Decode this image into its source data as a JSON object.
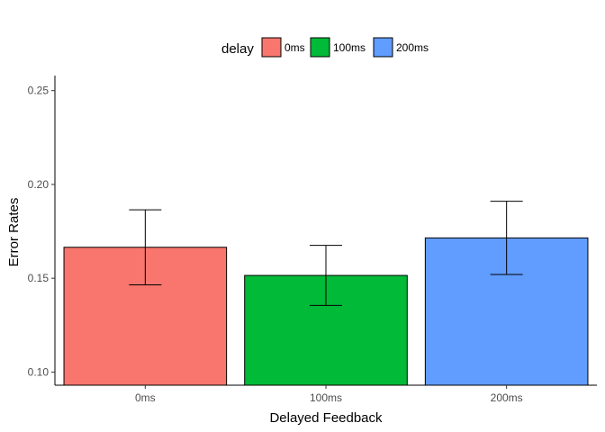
{
  "chart_data": {
    "type": "bar",
    "title": "",
    "xlabel": "Delayed Feedback",
    "ylabel": "Error Rates",
    "categories": [
      "0ms",
      "100ms",
      "200ms"
    ],
    "values": [
      0.1665,
      0.1515,
      0.1715
    ],
    "error_bars": [
      {
        "low": 0.1465,
        "high": 0.1865
      },
      {
        "low": 0.1355,
        "high": 0.1675
      },
      {
        "low": 0.152,
        "high": 0.191
      }
    ],
    "colors": [
      "#F8766D",
      "#00BA38",
      "#619CFF"
    ],
    "ylim": [
      0.093,
      0.258
    ],
    "yticks": [
      0.1,
      0.15,
      0.2,
      0.25
    ],
    "ytick_labels": [
      "0.10",
      "0.15",
      "0.20",
      "0.25"
    ],
    "grid": false,
    "legend": {
      "title": "delay",
      "position": "top",
      "entries": [
        "0ms",
        "100ms",
        "200ms"
      ]
    }
  }
}
